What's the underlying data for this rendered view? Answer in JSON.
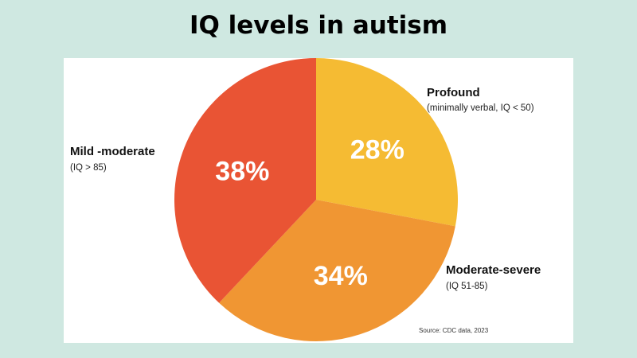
{
  "slide": {
    "title": "IQ levels in autism",
    "background_color": "#cfe8e1"
  },
  "chart_data": {
    "type": "pie",
    "title": "IQ levels in autism",
    "slices": [
      {
        "label": "Profound",
        "sublabel": "(minimally verbal, IQ < 50)",
        "value": 28,
        "display": "28%",
        "color": "#f5bb33"
      },
      {
        "label": "Moderate-severe",
        "sublabel": "(IQ 51-85)",
        "value": 34,
        "display": "34%",
        "color": "#f09633"
      },
      {
        "label": "Mild -moderate",
        "sublabel": "(IQ > 85)",
        "value": 38,
        "display": "38%",
        "color": "#e95434"
      }
    ],
    "start_position": "top (12 o'clock)",
    "direction": "clockwise",
    "source": "Source: CDC data, 2023"
  }
}
